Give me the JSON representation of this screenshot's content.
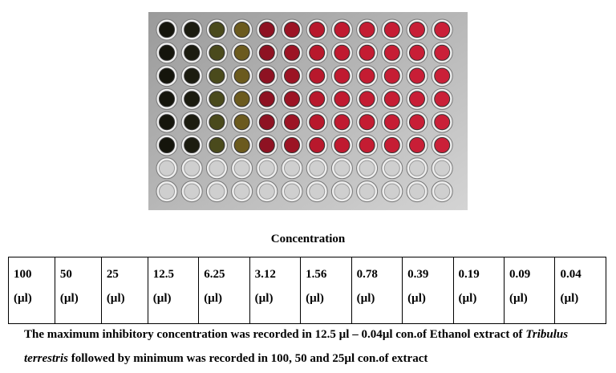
{
  "heading": "Concentration",
  "table": {
    "cells": [
      {
        "value": "100",
        "unit": "(µl)"
      },
      {
        "value": "50",
        "unit": "(µl)"
      },
      {
        "value": "25",
        "unit": "(µl)"
      },
      {
        "value": "12.5",
        "unit": "(µl)"
      },
      {
        "value": "6.25",
        "unit": "(µl)"
      },
      {
        "value": "3.12",
        "unit": "(µl)"
      },
      {
        "value": "1.56",
        "unit": "(µl)"
      },
      {
        "value": "0.78",
        "unit": "(µl)"
      },
      {
        "value": "0.39",
        "unit": "(µl)"
      },
      {
        "value": "0.19",
        "unit": "(µl)"
      },
      {
        "value": "0.09",
        "unit": "(µl)"
      },
      {
        "value": "0.04",
        "unit": "(µl)"
      }
    ]
  },
  "caption": [
    "The maximum inhibitory concentration was recorded in 12.5 µl – 0.04µl con.of Ethanol extract of ",
    "Tribulus terrestris",
    " followed by minimum was recorded in 100, 50 and 25µl con.of extract"
  ]
}
